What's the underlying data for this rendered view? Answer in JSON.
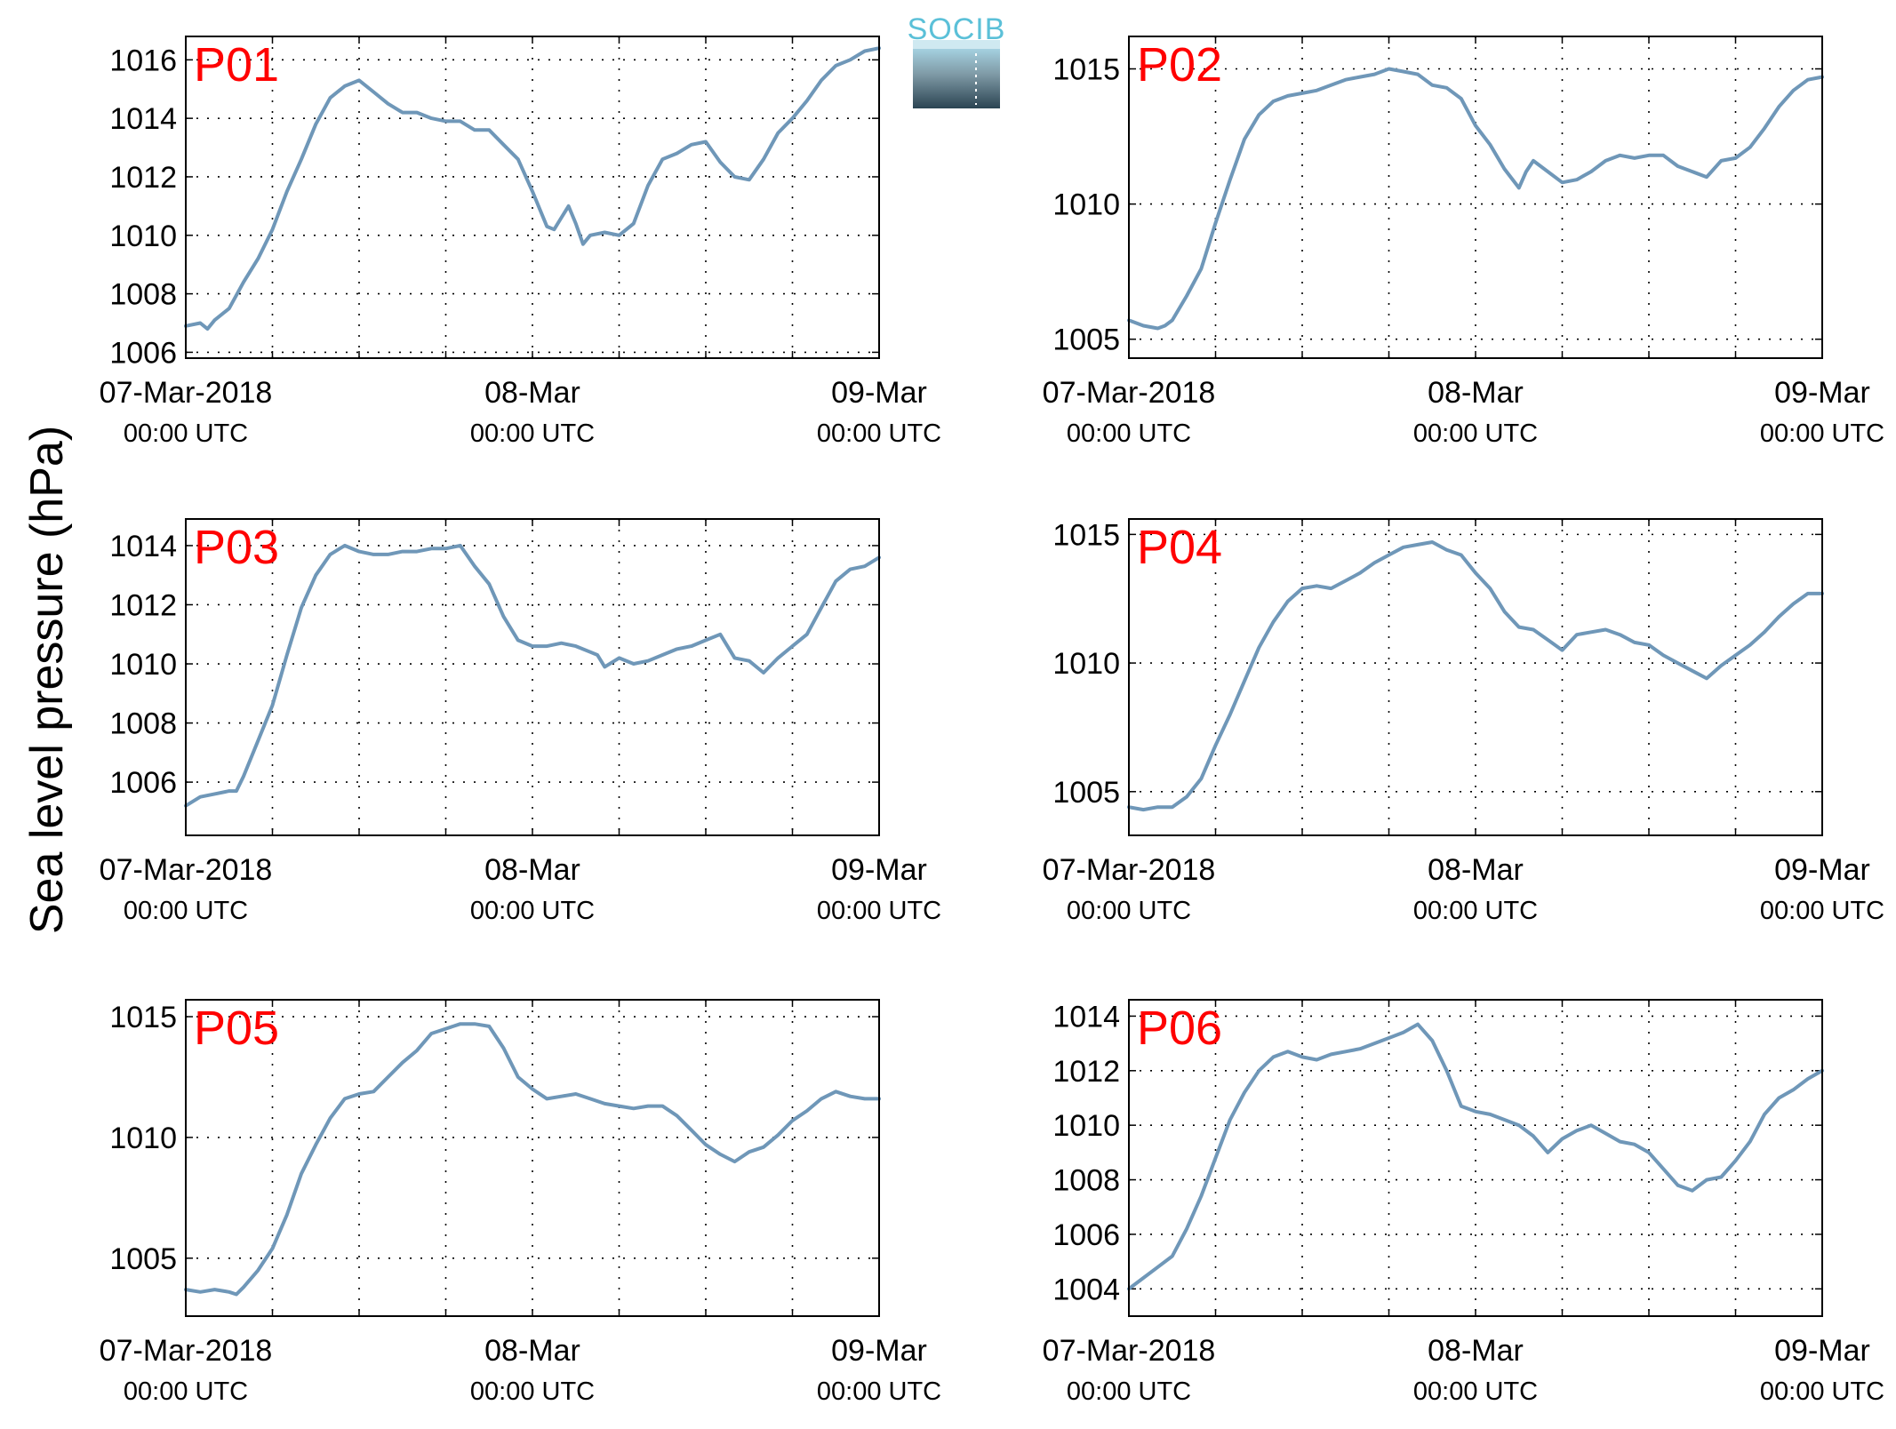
{
  "figure": {
    "ylabel": "Sea level pressure (hPa)",
    "logo_text": "SOCIB",
    "colors": {
      "line": "#6f97b8",
      "panel_label": "#ff0000",
      "axis": "#000000",
      "grid": "#000000",
      "logo_top": "#a8d6e6",
      "logo_bottom": "#2b4452",
      "logo_text": "#5bc0d8"
    }
  },
  "chart_data": [
    {
      "type": "line",
      "label": "P01",
      "x_range_hours": [
        0,
        48
      ],
      "x_ticks_hours": [
        0,
        24,
        48
      ],
      "x_tick_labels": [
        [
          "07-Mar-2018",
          "00:00 UTC"
        ],
        [
          "08-Mar",
          "00:00 UTC"
        ],
        [
          "09-Mar",
          "00:00 UTC"
        ]
      ],
      "ylim": [
        1005.8,
        1016.8
      ],
      "y_ticks": [
        1006,
        1008,
        1010,
        1012,
        1014,
        1016
      ],
      "grid": true,
      "series": [
        {
          "x": [
            0,
            1,
            1.5,
            2,
            3,
            4,
            5,
            6,
            7,
            8,
            9,
            10,
            11,
            12,
            13,
            14,
            15,
            16,
            17,
            18,
            19,
            20,
            21,
            22,
            23,
            24,
            25,
            25.5,
            26,
            26.5,
            27,
            27.5,
            28,
            29,
            30,
            31,
            32,
            33,
            34,
            35,
            36,
            37,
            38,
            39,
            40,
            41,
            42,
            43,
            44,
            45,
            46,
            47,
            48
          ],
          "y": [
            1006.9,
            1007.0,
            1006.8,
            1007.1,
            1007.5,
            1008.4,
            1009.2,
            1010.2,
            1011.5,
            1012.6,
            1013.8,
            1014.7,
            1015.1,
            1015.3,
            1014.9,
            1014.5,
            1014.2,
            1014.2,
            1014.0,
            1013.9,
            1013.9,
            1013.6,
            1013.6,
            1013.1,
            1012.6,
            1011.5,
            1010.3,
            1010.2,
            1010.6,
            1011.0,
            1010.4,
            1009.7,
            1010.0,
            1010.1,
            1010.0,
            1010.4,
            1011.7,
            1012.6,
            1012.8,
            1013.1,
            1013.2,
            1012.5,
            1012.0,
            1011.9,
            1012.6,
            1013.5,
            1014.0,
            1014.6,
            1015.3,
            1015.8,
            1016.0,
            1016.3,
            1016.4
          ]
        }
      ]
    },
    {
      "type": "line",
      "label": "P02",
      "x_range_hours": [
        0,
        48
      ],
      "x_ticks_hours": [
        0,
        24,
        48
      ],
      "x_tick_labels": [
        [
          "07-Mar-2018",
          "00:00 UTC"
        ],
        [
          "08-Mar",
          "00:00 UTC"
        ],
        [
          "09-Mar",
          "00:00 UTC"
        ]
      ],
      "ylim": [
        1004.3,
        1016.2
      ],
      "y_ticks": [
        1005,
        1010,
        1015
      ],
      "grid": true,
      "series": [
        {
          "x": [
            0,
            1,
            2,
            2.5,
            3,
            4,
            5,
            6,
            7,
            8,
            9,
            10,
            11,
            12,
            13,
            14,
            15,
            16,
            17,
            18,
            19,
            20,
            21,
            22,
            23,
            24,
            25,
            26,
            27,
            27.5,
            28,
            29,
            30,
            31,
            32,
            33,
            34,
            35,
            36,
            37,
            38,
            39,
            40,
            41,
            42,
            43,
            44,
            45,
            46,
            47,
            48
          ],
          "y": [
            1005.7,
            1005.5,
            1005.4,
            1005.5,
            1005.7,
            1006.6,
            1007.6,
            1009.3,
            1010.9,
            1012.4,
            1013.3,
            1013.8,
            1014.0,
            1014.1,
            1014.2,
            1014.4,
            1014.6,
            1014.7,
            1014.8,
            1015.0,
            1014.9,
            1014.8,
            1014.4,
            1014.3,
            1013.9,
            1012.9,
            1012.2,
            1011.3,
            1010.6,
            1011.2,
            1011.6,
            1011.2,
            1010.8,
            1010.9,
            1011.2,
            1011.6,
            1011.8,
            1011.7,
            1011.8,
            1011.8,
            1011.4,
            1011.2,
            1011.0,
            1011.6,
            1011.7,
            1012.1,
            1012.8,
            1013.6,
            1014.2,
            1014.6,
            1014.7
          ]
        }
      ]
    },
    {
      "type": "line",
      "label": "P03",
      "x_range_hours": [
        0,
        48
      ],
      "x_ticks_hours": [
        0,
        24,
        48
      ],
      "x_tick_labels": [
        [
          "07-Mar-2018",
          "00:00 UTC"
        ],
        [
          "08-Mar",
          "00:00 UTC"
        ],
        [
          "09-Mar",
          "00:00 UTC"
        ]
      ],
      "ylim": [
        1004.2,
        1014.9
      ],
      "y_ticks": [
        1006,
        1008,
        1010,
        1012,
        1014
      ],
      "grid": true,
      "series": [
        {
          "x": [
            0,
            1,
            2,
            3,
            3.5,
            4,
            5,
            6,
            7,
            8,
            9,
            10,
            11,
            12,
            13,
            14,
            15,
            16,
            17,
            18,
            19,
            20,
            21,
            22,
            23,
            24,
            25,
            26,
            27,
            28,
            28.5,
            29,
            30,
            31,
            32,
            33,
            34,
            35,
            36,
            37,
            38,
            39,
            40,
            41,
            42,
            43,
            44,
            45,
            46,
            47,
            48
          ],
          "y": [
            1005.2,
            1005.5,
            1005.6,
            1005.7,
            1005.7,
            1006.2,
            1007.4,
            1008.6,
            1010.3,
            1011.9,
            1013.0,
            1013.7,
            1014.0,
            1013.8,
            1013.7,
            1013.7,
            1013.8,
            1013.8,
            1013.9,
            1013.9,
            1014.0,
            1013.3,
            1012.7,
            1011.6,
            1010.8,
            1010.6,
            1010.6,
            1010.7,
            1010.6,
            1010.4,
            1010.3,
            1009.9,
            1010.2,
            1010.0,
            1010.1,
            1010.3,
            1010.5,
            1010.6,
            1010.8,
            1011.0,
            1010.2,
            1010.1,
            1009.7,
            1010.2,
            1010.6,
            1011.0,
            1011.9,
            1012.8,
            1013.2,
            1013.3,
            1013.6
          ]
        }
      ]
    },
    {
      "type": "line",
      "label": "P04",
      "x_range_hours": [
        0,
        48
      ],
      "x_ticks_hours": [
        0,
        24,
        48
      ],
      "x_tick_labels": [
        [
          "07-Mar-2018",
          "00:00 UTC"
        ],
        [
          "08-Mar",
          "00:00 UTC"
        ],
        [
          "09-Mar",
          "00:00 UTC"
        ]
      ],
      "ylim": [
        1003.3,
        1015.6
      ],
      "y_ticks": [
        1005,
        1010,
        1015
      ],
      "grid": true,
      "series": [
        {
          "x": [
            0,
            1,
            2,
            3,
            4,
            5,
            6,
            7,
            8,
            9,
            10,
            11,
            12,
            13,
            14,
            15,
            16,
            17,
            18,
            19,
            20,
            21,
            22,
            23,
            24,
            25,
            26,
            27,
            28,
            29,
            30,
            31,
            32,
            33,
            34,
            35,
            36,
            37,
            38,
            39,
            40,
            41,
            42,
            43,
            44,
            45,
            46,
            47,
            48
          ],
          "y": [
            1004.4,
            1004.3,
            1004.4,
            1004.4,
            1004.8,
            1005.5,
            1006.8,
            1008.0,
            1009.3,
            1010.6,
            1011.6,
            1012.4,
            1012.9,
            1013.0,
            1012.9,
            1013.2,
            1013.5,
            1013.9,
            1014.2,
            1014.5,
            1014.6,
            1014.7,
            1014.4,
            1014.2,
            1013.5,
            1012.9,
            1012.0,
            1011.4,
            1011.3,
            1010.9,
            1010.5,
            1011.1,
            1011.2,
            1011.3,
            1011.1,
            1010.8,
            1010.7,
            1010.3,
            1010.0,
            1009.7,
            1009.4,
            1009.9,
            1010.3,
            1010.7,
            1011.2,
            1011.8,
            1012.3,
            1012.7,
            1012.7
          ]
        }
      ]
    },
    {
      "type": "line",
      "label": "P05",
      "x_range_hours": [
        0,
        48
      ],
      "x_ticks_hours": [
        0,
        24,
        48
      ],
      "x_tick_labels": [
        [
          "07-Mar-2018",
          "00:00 UTC"
        ],
        [
          "08-Mar",
          "00:00 UTC"
        ],
        [
          "09-Mar",
          "00:00 UTC"
        ]
      ],
      "ylim": [
        1002.6,
        1015.7
      ],
      "y_ticks": [
        1005,
        1010,
        1015
      ],
      "grid": true,
      "series": [
        {
          "x": [
            0,
            1,
            2,
            3,
            3.5,
            4,
            5,
            6,
            7,
            8,
            9,
            10,
            11,
            12,
            13,
            14,
            15,
            16,
            17,
            18,
            19,
            20,
            21,
            22,
            23,
            24,
            25,
            26,
            27,
            28,
            29,
            30,
            31,
            32,
            33,
            34,
            35,
            36,
            37,
            38,
            39,
            40,
            41,
            42,
            43,
            44,
            45,
            46,
            47,
            48
          ],
          "y": [
            1003.7,
            1003.6,
            1003.7,
            1003.6,
            1003.5,
            1003.8,
            1004.5,
            1005.4,
            1006.8,
            1008.5,
            1009.7,
            1010.8,
            1011.6,
            1011.8,
            1011.9,
            1012.5,
            1013.1,
            1013.6,
            1014.3,
            1014.5,
            1014.7,
            1014.7,
            1014.6,
            1013.7,
            1012.5,
            1012.0,
            1011.6,
            1011.7,
            1011.8,
            1011.6,
            1011.4,
            1011.3,
            1011.2,
            1011.3,
            1011.3,
            1010.9,
            1010.3,
            1009.7,
            1009.3,
            1009.0,
            1009.4,
            1009.6,
            1010.1,
            1010.7,
            1011.1,
            1011.6,
            1011.9,
            1011.7,
            1011.6,
            1011.6
          ]
        }
      ]
    },
    {
      "type": "line",
      "label": "P06",
      "x_range_hours": [
        0,
        48
      ],
      "x_ticks_hours": [
        0,
        24,
        48
      ],
      "x_tick_labels": [
        [
          "07-Mar-2018",
          "00:00 UTC"
        ],
        [
          "08-Mar",
          "00:00 UTC"
        ],
        [
          "09-Mar",
          "00:00 UTC"
        ]
      ],
      "ylim": [
        1003.0,
        1014.6
      ],
      "y_ticks": [
        1004,
        1006,
        1008,
        1010,
        1012,
        1014
      ],
      "grid": true,
      "series": [
        {
          "x": [
            0,
            1,
            2,
            3,
            4,
            5,
            6,
            7,
            8,
            9,
            10,
            11,
            12,
            13,
            14,
            15,
            16,
            17,
            18,
            19,
            20,
            21,
            22,
            23,
            24,
            25,
            26,
            27,
            28,
            29,
            30,
            31,
            32,
            33,
            34,
            35,
            36,
            37,
            38,
            39,
            40,
            41,
            42,
            43,
            44,
            45,
            46,
            47,
            48
          ],
          "y": [
            1004.0,
            1004.4,
            1004.8,
            1005.2,
            1006.2,
            1007.4,
            1008.8,
            1010.2,
            1011.2,
            1012.0,
            1012.5,
            1012.7,
            1012.5,
            1012.4,
            1012.6,
            1012.7,
            1012.8,
            1013.0,
            1013.2,
            1013.4,
            1013.7,
            1013.1,
            1012.0,
            1010.7,
            1010.5,
            1010.4,
            1010.2,
            1010.0,
            1009.6,
            1009.0,
            1009.5,
            1009.8,
            1010.0,
            1009.7,
            1009.4,
            1009.3,
            1009.0,
            1008.4,
            1007.8,
            1007.6,
            1008.0,
            1008.1,
            1008.7,
            1009.4,
            1010.4,
            1011.0,
            1011.3,
            1011.7,
            1012.0
          ]
        }
      ]
    }
  ]
}
